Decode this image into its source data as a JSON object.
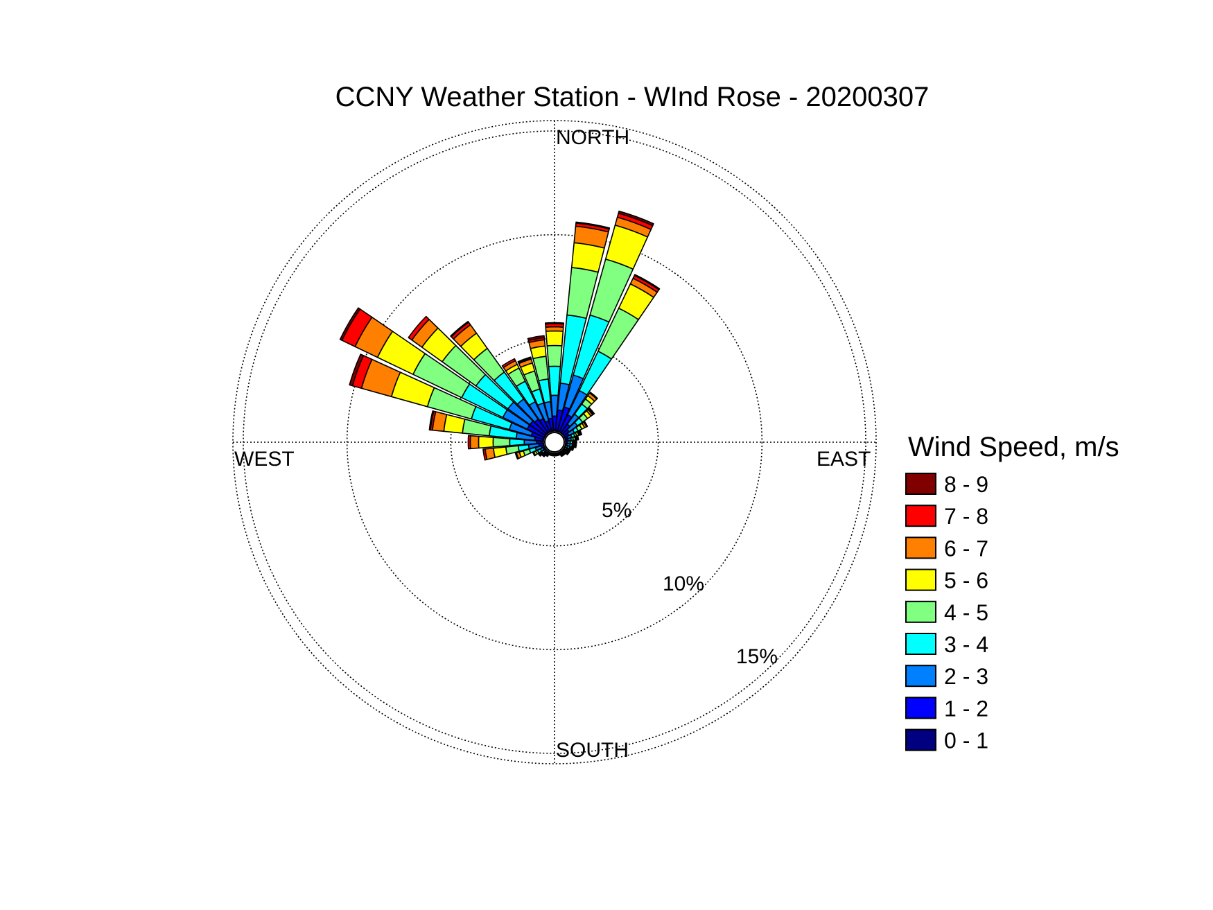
{
  "chart_data": {
    "type": "wind-rose",
    "title": "CCNY Weather Station - WInd Rose - 20200307",
    "direction_labels": {
      "north": "NORTH",
      "east": "EAST",
      "south": "SOUTH",
      "west": "WEST"
    },
    "ring_labels": [
      "5%",
      "10%",
      "15%"
    ],
    "rings_percent": [
      5,
      10,
      15
    ],
    "max_percent": 15.5,
    "legend": {
      "title": "Wind Speed, m/s",
      "placement": "right",
      "bins": [
        {
          "label": "8 - 9",
          "color": "#800000"
        },
        {
          "label": "7 - 8",
          "color": "#ff0000"
        },
        {
          "label": "6 - 7",
          "color": "#ff8000"
        },
        {
          "label": "5 - 6",
          "color": "#ffff00"
        },
        {
          "label": "4 - 5",
          "color": "#80ff80"
        },
        {
          "label": "3 - 4",
          "color": "#00ffff"
        },
        {
          "label": "2 - 3",
          "color": "#0080ff"
        },
        {
          "label": "1 - 2",
          "color": "#0000ff"
        },
        {
          "label": "0 - 1",
          "color": "#000080"
        }
      ]
    },
    "sector_width_deg": 10,
    "speed_bins_order": [
      "0 - 1",
      "1 - 2",
      "2 - 3",
      "3 - 4",
      "4 - 5",
      "5 - 6",
      "6 - 7",
      "7 - 8",
      "8 - 9"
    ],
    "sectors": [
      {
        "direction_deg": 0,
        "cumulative_percent": [
          0.4,
          1.1,
          2.1,
          3.5,
          4.5,
          5.2,
          5.4,
          5.55,
          5.6
        ]
      },
      {
        "direction_deg": 10,
        "cumulative_percent": [
          0.4,
          1.4,
          2.7,
          6.0,
          8.3,
          9.5,
          10.3,
          10.45,
          10.5
        ]
      },
      {
        "direction_deg": 20,
        "cumulative_percent": [
          0.4,
          1.6,
          3.2,
          6.2,
          9.0,
          10.7,
          11.1,
          11.3,
          11.4
        ]
      },
      {
        "direction_deg": 30,
        "cumulative_percent": [
          0.4,
          1.3,
          2.6,
          4.7,
          7.0,
          8.3,
          8.6,
          8.75,
          8.8
        ]
      },
      {
        "direction_deg": 40,
        "cumulative_percent": [
          0.3,
          0.9,
          1.5,
          2.1,
          2.4,
          2.6,
          2.75,
          2.8,
          2.8
        ]
      },
      {
        "direction_deg": 50,
        "cumulative_percent": [
          0.3,
          0.7,
          1.2,
          1.5,
          1.8,
          2.0,
          2.1,
          2.15,
          2.2
        ]
      },
      {
        "direction_deg": 60,
        "cumulative_percent": [
          0.3,
          0.6,
          0.9,
          1.1,
          1.3,
          1.45,
          1.55,
          1.6,
          1.6
        ]
      },
      {
        "direction_deg": 70,
        "cumulative_percent": [
          0.3,
          0.5,
          0.7,
          0.85,
          0.95,
          1.05,
          1.1,
          1.15,
          1.2
        ]
      },
      {
        "direction_deg": 80,
        "cumulative_percent": [
          0.3,
          0.5,
          0.65,
          0.75,
          0.85,
          0.9,
          0.95,
          1.0,
          1.0
        ]
      },
      {
        "direction_deg": 90,
        "cumulative_percent": [
          0.3,
          0.45,
          0.6,
          0.7,
          0.75,
          0.8,
          0.85,
          0.9,
          0.9
        ]
      },
      {
        "direction_deg": 100,
        "cumulative_percent": [
          0.3,
          0.45,
          0.6,
          0.7,
          0.75,
          0.8,
          0.85,
          0.9,
          0.9
        ]
      },
      {
        "direction_deg": 110,
        "cumulative_percent": [
          0.3,
          0.4,
          0.5,
          0.6,
          0.65,
          0.7,
          0.75,
          0.8,
          0.8
        ]
      },
      {
        "direction_deg": 120,
        "cumulative_percent": [
          0.3,
          0.4,
          0.5,
          0.55,
          0.6,
          0.65,
          0.7,
          0.7,
          0.7
        ]
      },
      {
        "direction_deg": 130,
        "cumulative_percent": [
          0.3,
          0.4,
          0.45,
          0.5,
          0.55,
          0.6,
          0.65,
          0.65,
          0.7
        ]
      },
      {
        "direction_deg": 140,
        "cumulative_percent": [
          0.3,
          0.35,
          0.4,
          0.45,
          0.5,
          0.55,
          0.6,
          0.6,
          0.6
        ]
      },
      {
        "direction_deg": 150,
        "cumulative_percent": [
          0.3,
          0.35,
          0.4,
          0.45,
          0.5,
          0.5,
          0.55,
          0.55,
          0.6
        ]
      },
      {
        "direction_deg": 160,
        "cumulative_percent": [
          0.3,
          0.35,
          0.4,
          0.45,
          0.5,
          0.5,
          0.5,
          0.5,
          0.5
        ]
      },
      {
        "direction_deg": 170,
        "cumulative_percent": [
          0.3,
          0.35,
          0.4,
          0.45,
          0.5,
          0.5,
          0.5,
          0.5,
          0.5
        ]
      },
      {
        "direction_deg": 180,
        "cumulative_percent": [
          0.3,
          0.35,
          0.4,
          0.45,
          0.5,
          0.5,
          0.5,
          0.5,
          0.5
        ]
      },
      {
        "direction_deg": 190,
        "cumulative_percent": [
          0.3,
          0.35,
          0.4,
          0.45,
          0.5,
          0.5,
          0.5,
          0.5,
          0.5
        ]
      },
      {
        "direction_deg": 200,
        "cumulative_percent": [
          0.3,
          0.35,
          0.4,
          0.45,
          0.5,
          0.5,
          0.5,
          0.5,
          0.5
        ]
      },
      {
        "direction_deg": 210,
        "cumulative_percent": [
          0.3,
          0.35,
          0.4,
          0.45,
          0.5,
          0.55,
          0.55,
          0.55,
          0.6
        ]
      },
      {
        "direction_deg": 220,
        "cumulative_percent": [
          0.3,
          0.35,
          0.45,
          0.5,
          0.55,
          0.6,
          0.65,
          0.65,
          0.7
        ]
      },
      {
        "direction_deg": 230,
        "cumulative_percent": [
          0.3,
          0.4,
          0.5,
          0.6,
          0.65,
          0.7,
          0.75,
          0.75,
          0.8
        ]
      },
      {
        "direction_deg": 240,
        "cumulative_percent": [
          0.3,
          0.45,
          0.6,
          0.75,
          0.85,
          0.95,
          1.0,
          1.0,
          1.0
        ]
      },
      {
        "direction_deg": 250,
        "cumulative_percent": [
          0.3,
          0.5,
          0.8,
          1.1,
          1.4,
          1.6,
          1.75,
          1.8,
          1.8
        ]
      },
      {
        "direction_deg": 260,
        "cumulative_percent": [
          0.3,
          0.6,
          1.1,
          1.6,
          2.2,
          2.8,
          3.2,
          3.3,
          3.3
        ]
      },
      {
        "direction_deg": 270,
        "cumulative_percent": [
          0.3,
          0.7,
          1.3,
          2.0,
          2.8,
          3.5,
          3.9,
          4.0,
          4.0
        ]
      },
      {
        "direction_deg": 280,
        "cumulative_percent": [
          0.3,
          0.8,
          1.7,
          3.0,
          4.3,
          5.2,
          5.75,
          5.85,
          5.9
        ]
      },
      {
        "direction_deg": 290,
        "cumulative_percent": [
          0.3,
          1.0,
          2.1,
          4.0,
          6.2,
          8.0,
          9.5,
          9.95,
          10.1
        ]
      },
      {
        "direction_deg": 300,
        "cumulative_percent": [
          0.4,
          1.3,
          2.6,
          4.8,
          7.4,
          9.3,
          10.5,
          11.2,
          11.3
        ]
      },
      {
        "direction_deg": 310,
        "cumulative_percent": [
          0.4,
          1.3,
          2.6,
          4.5,
          6.5,
          7.7,
          8.3,
          8.5,
          8.5
        ]
      },
      {
        "direction_deg": 320,
        "cumulative_percent": [
          0.4,
          1.2,
          2.4,
          4.0,
          5.4,
          6.3,
          6.8,
          6.95,
          7.0
        ]
      },
      {
        "direction_deg": 330,
        "cumulative_percent": [
          0.4,
          1.1,
          2.0,
          3.1,
          3.8,
          4.0,
          4.2,
          4.3,
          4.3
        ]
      },
      {
        "direction_deg": 340,
        "cumulative_percent": [
          0.4,
          0.9,
          1.8,
          2.5,
          3.4,
          3.8,
          4.0,
          4.05,
          4.1
        ]
      },
      {
        "direction_deg": 350,
        "cumulative_percent": [
          0.4,
          1.0,
          1.8,
          2.9,
          4.0,
          4.5,
          4.8,
          4.9,
          5.0
        ]
      }
    ]
  }
}
